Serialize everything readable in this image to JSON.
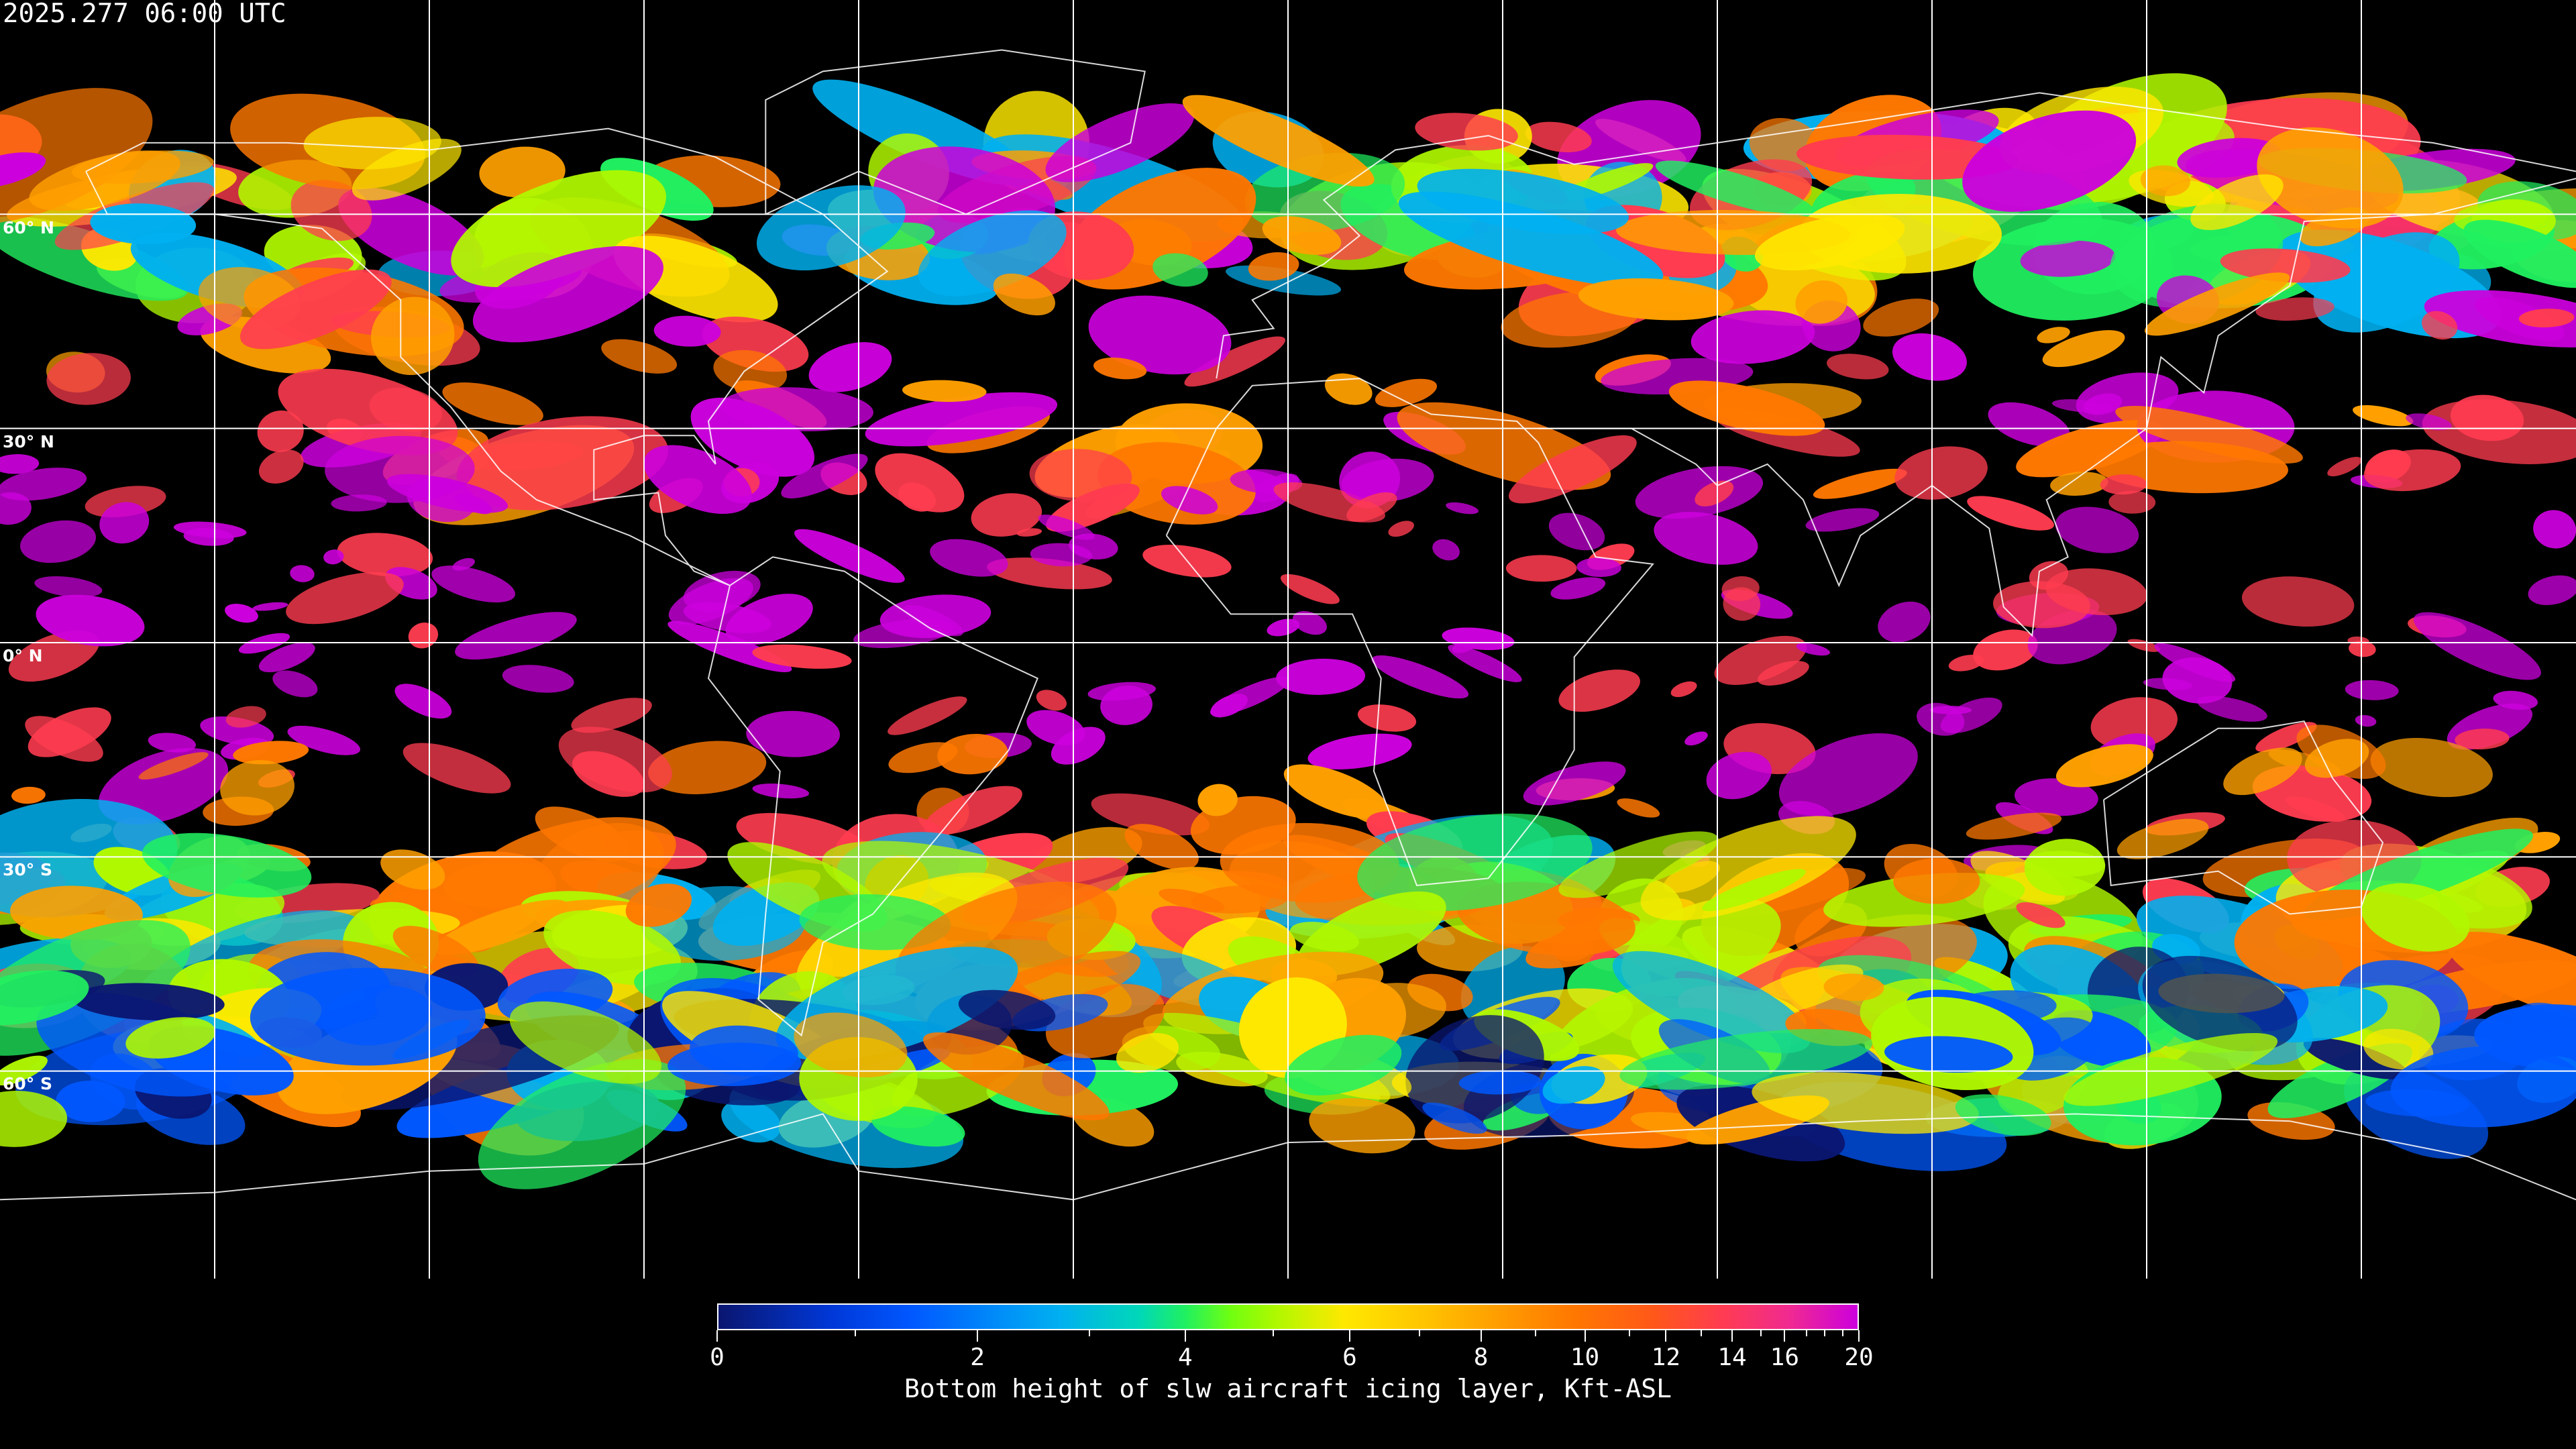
{
  "header": {
    "timestamp": "2025.277 06:00 UTC"
  },
  "map": {
    "projection": "equirectangular",
    "lon_range": [
      -180,
      180
    ],
    "lat_range": [
      -90,
      90
    ],
    "grid_lon_step": 30,
    "grid_lat_step": 30,
    "lat_labels": [
      "60° N",
      "30° N",
      "0° N",
      "30° S",
      "60° S"
    ],
    "background_color": "#000000",
    "grid_color": "#ffffff",
    "coastline_color": "#ffffff"
  },
  "colorbar": {
    "title": "Bottom height of slw aircraft icing layer, Kft-ASL",
    "min": 0,
    "max": 20,
    "tick_labels": [
      "0",
      "2",
      "4",
      "6",
      "8",
      "10",
      "12",
      "14",
      "16",
      "20"
    ],
    "minor_ticks": [
      1,
      3,
      5,
      7,
      9,
      11,
      13,
      15,
      17,
      18,
      19
    ],
    "colors": [
      "#0a1670",
      "#0058ff",
      "#00b0f0",
      "#20f060",
      "#b0f800",
      "#ffe800",
      "#ffa000",
      "#ff7800",
      "#ff3c50",
      "#cc00dd"
    ]
  }
}
